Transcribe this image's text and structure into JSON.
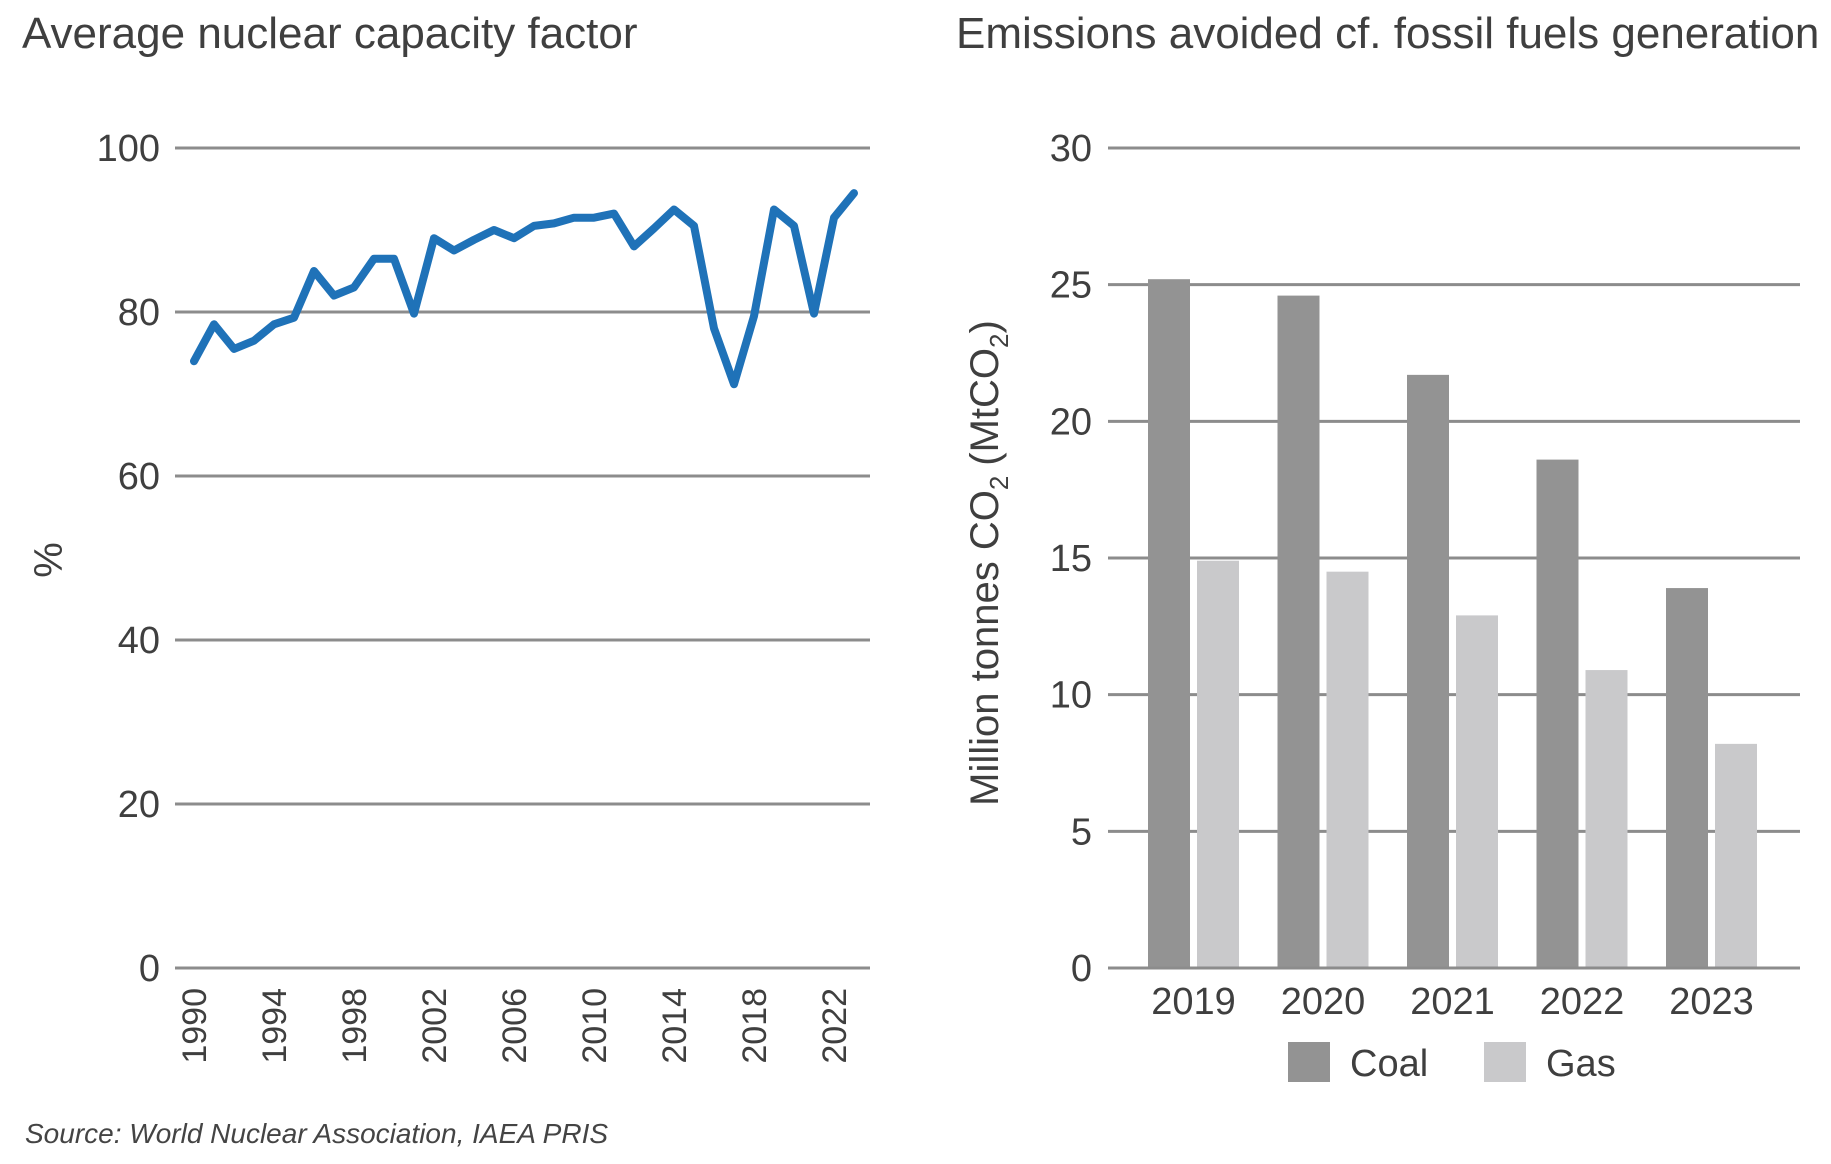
{
  "source": "Source: World Nuclear Association, IAEA PRIS",
  "colors": {
    "line": "#1f72b8",
    "coal": "#939393",
    "gas": "#c9c9cb",
    "grid": "#8c8c8c",
    "text": "#3f3f3f"
  },
  "chart_data": [
    {
      "type": "line",
      "title": "Average nuclear capacity factor",
      "xlabel": "",
      "ylabel": "%",
      "ylim": [
        0,
        100
      ],
      "yticks": [
        "0",
        "20",
        "40",
        "60",
        "80",
        "100"
      ],
      "xticks": [
        "1990",
        "1994",
        "1998",
        "2002",
        "2006",
        "2010",
        "2014",
        "2018",
        "2022"
      ],
      "grid": true,
      "series": [
        {
          "name": "",
          "x": [
            1990,
            1991,
            1992,
            1993,
            1994,
            1995,
            1996,
            1997,
            1998,
            1999,
            2000,
            2001,
            2002,
            2003,
            2004,
            2005,
            2006,
            2007,
            2008,
            2009,
            2010,
            2011,
            2012,
            2013,
            2014,
            2015,
            2016,
            2017,
            2018,
            2019,
            2020,
            2021,
            2022,
            2023
          ],
          "y": [
            74,
            78.5,
            75.5,
            76.5,
            78.5,
            79.3,
            85,
            82,
            83,
            86.5,
            86.5,
            79.8,
            89,
            87.5,
            88.8,
            90,
            89,
            90.5,
            90.8,
            91.5,
            91.5,
            92,
            88,
            90.2,
            92.5,
            90.5,
            78,
            71.2,
            79.5,
            92.5,
            90.5,
            79.8,
            91.5,
            94.5
          ]
        }
      ]
    },
    {
      "type": "bar",
      "title": "Emissions avoided cf. fossil fuels generation",
      "xlabel": "",
      "ylabel": "Million tonnes CO",
      "ylabel_sub": "2",
      "ylabel_unit": "(MtCO",
      "ylabel_unit_sub": "2",
      "ylabel_unit_close": ")",
      "ylim": [
        0,
        30
      ],
      "yticks": [
        "0",
        "5",
        "10",
        "15",
        "20",
        "25",
        "30"
      ],
      "categories": [
        "2019",
        "2020",
        "2021",
        "2022",
        "2023"
      ],
      "grid": true,
      "legend": "bottom",
      "series": [
        {
          "name": "Coal",
          "values": [
            25.2,
            24.6,
            21.7,
            18.6,
            13.9
          ]
        },
        {
          "name": "Gas",
          "values": [
            14.9,
            14.5,
            12.9,
            10.9,
            8.2
          ]
        }
      ]
    }
  ]
}
